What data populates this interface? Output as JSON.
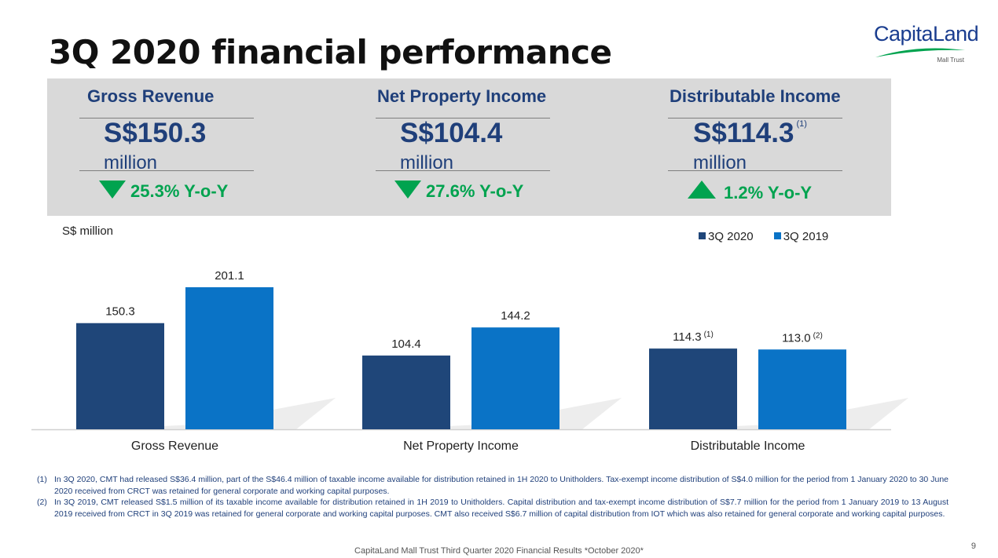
{
  "slide": {
    "title": "3Q 2020 financial performance",
    "page_number": "9",
    "footer": "CapitaLand Mall Trust Third Quarter 2020 Financial Results *October 2020*"
  },
  "logo": {
    "name": "CapitaLand",
    "subtitle": "Mall Trust"
  },
  "summary": {
    "gross_revenue": {
      "label": "Gross Revenue",
      "value": "S$150.3",
      "unit": "million",
      "change": "25.3% Y-o-Y",
      "direction": "down"
    },
    "net_property_income": {
      "label": "Net Property Income",
      "value": "S$104.4",
      "unit": "million",
      "change": "27.6% Y-o-Y",
      "direction": "down"
    },
    "distributable_income": {
      "label": "Distributable Income",
      "value": "S$114.3",
      "note": "(1)",
      "unit": "million",
      "change": "1.2% Y-o-Y",
      "direction": "up"
    }
  },
  "colors": {
    "series_3q2020": "#1f4679",
    "series_3q2019": "#0a73c6",
    "positive": "#00a34f",
    "panel": "#d9d9d9",
    "heading": "#1f3f7a"
  },
  "chart_data": {
    "type": "bar",
    "ylabel": "S$ million",
    "categories": [
      "Gross Revenue",
      "Net Property Income",
      "Distributable Income"
    ],
    "series": [
      {
        "name": "3Q 2020",
        "values": [
          150.3,
          104.4,
          114.3
        ],
        "labels": [
          "150.3",
          "104.4",
          "114.3"
        ],
        "notes": [
          "",
          "",
          "(1)"
        ]
      },
      {
        "name": "3Q 2019",
        "values": [
          201.1,
          144.2,
          113.0
        ],
        "labels": [
          "201.1",
          "144.2",
          "113.0"
        ],
        "notes": [
          "",
          "",
          "(2)"
        ]
      }
    ],
    "ylim": [
      0,
      220
    ],
    "grid": false,
    "legend": "top-right"
  },
  "footnotes": [
    {
      "mark": "(1)",
      "text": "In 3Q 2020, CMT had released S$36.4 million, part of the S$46.4 million of taxable income available for distribution retained in 1H 2020 to Unitholders. Tax-exempt income distribution of S$4.0 million for the period from 1 January 2020 to 30 June 2020 received from CRCT was retained for general corporate and working capital purposes."
    },
    {
      "mark": "(2)",
      "text": "In 3Q 2019, CMT released S$1.5 million of its taxable income available for distribution retained in 1H 2019 to Unitholders. Capital distribution and tax-exempt income distribution of S$7.7 million for the period from 1 January 2019 to 13 August 2019 received from CRCT in 3Q 2019 was retained for general corporate and working capital purposes. CMT also received S$6.7 million of capital distribution from IOT which was also retained for general corporate and working capital purposes."
    }
  ]
}
